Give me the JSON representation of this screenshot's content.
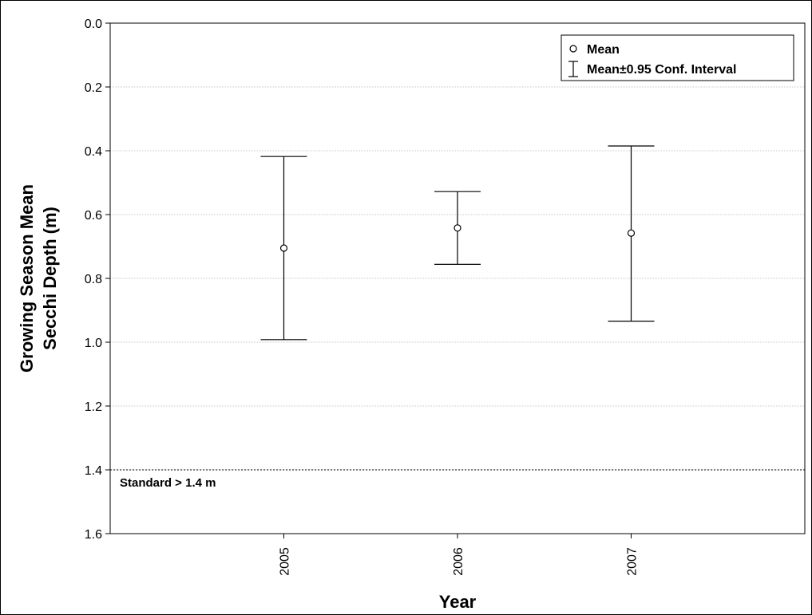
{
  "chart_data": {
    "type": "scatter",
    "xlabel": "Year",
    "ylabel_line1": "Growing Season Mean",
    "ylabel_line2": "Secchi Depth (m)",
    "categories": [
      "2005",
      "2006",
      "2007"
    ],
    "mean": [
      0.705,
      0.642,
      0.658
    ],
    "ci_lower": [
      0.418,
      0.528,
      0.385
    ],
    "ci_upper": [
      0.992,
      0.756,
      0.934
    ],
    "ylim": [
      0.0,
      1.6
    ],
    "y_inverted": true,
    "yticks": [
      "0.0",
      "0.2",
      "0.4",
      "0.6",
      "0.8",
      "1.0",
      "1.2",
      "1.4",
      "1.6"
    ],
    "ytick_values": [
      0.0,
      0.2,
      0.4,
      0.6,
      0.8,
      1.0,
      1.2,
      1.4,
      1.6
    ],
    "grid": "horizontal dotted",
    "legend": {
      "placement": "top-right",
      "mean_label": "Mean",
      "ci_label": "Mean±0.95 Conf. Interval"
    },
    "reference_line": {
      "value": 1.4,
      "label": "Standard > 1.4 m"
    }
  }
}
